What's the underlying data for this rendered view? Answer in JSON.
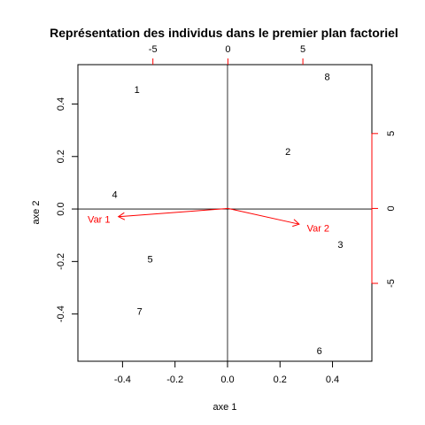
{
  "chart_data": {
    "type": "scatter",
    "title": "Représentation des individus dans le premier plan factoriel",
    "xlabel": "axe 1",
    "ylabel": "axe 2",
    "xlim": [
      -0.57,
      0.55
    ],
    "ylim": [
      -0.58,
      0.55
    ],
    "x_ticks": [
      "-0.4",
      "-0.2",
      "0.0",
      "0.2",
      "0.4"
    ],
    "x_tick_values": [
      -0.4,
      -0.2,
      0.0,
      0.2,
      0.4
    ],
    "y_ticks": [
      "-0.4",
      "-0.2",
      "0.0",
      "0.2",
      "0.4"
    ],
    "y_tick_values": [
      -0.4,
      -0.2,
      0.0,
      0.2,
      0.4
    ],
    "individuals": [
      {
        "label": "1",
        "x": -0.345,
        "y": 0.455
      },
      {
        "label": "2",
        "x": 0.23,
        "y": 0.22
      },
      {
        "label": "3",
        "x": 0.43,
        "y": -0.135
      },
      {
        "label": "4",
        "x": -0.43,
        "y": 0.055
      },
      {
        "label": "5",
        "x": -0.295,
        "y": -0.19
      },
      {
        "label": "6",
        "x": 0.35,
        "y": -0.54
      },
      {
        "label": "7",
        "x": -0.335,
        "y": -0.39
      },
      {
        "label": "8",
        "x": 0.38,
        "y": 0.505
      }
    ],
    "secondary_axes": {
      "color": "#ff0000",
      "top_ticks": [
        "-5",
        "0",
        "5"
      ],
      "top_tick_values": [
        -5,
        0,
        5
      ],
      "right_ticks": [
        "5",
        "0",
        "-5"
      ],
      "right_tick_values": [
        5,
        0,
        -5
      ],
      "xlim": [
        -10.0,
        9.6
      ],
      "ylim": [
        -10.2,
        9.6
      ]
    },
    "variables": [
      {
        "label": "Var 1",
        "x": -7.3,
        "y": -0.55
      },
      {
        "label": "Var 2",
        "x": 4.75,
        "y": -1.05
      }
    ],
    "colors": {
      "points": "#000000",
      "variables": "#ff0000",
      "axes": "#000000"
    }
  }
}
